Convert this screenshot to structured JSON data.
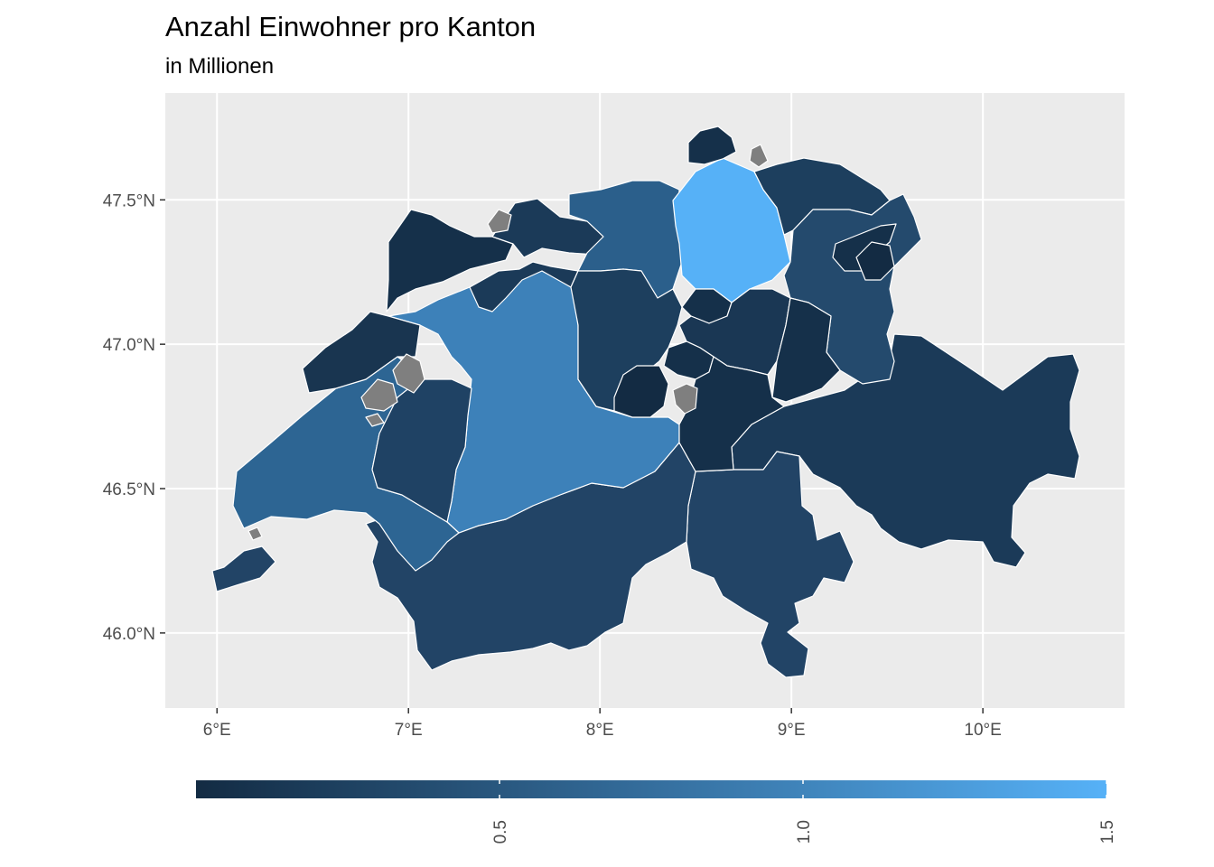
{
  "title": "Anzahl Einwohner pro Kanton",
  "subtitle": "in Millionen",
  "map": {
    "region": "Schweiz",
    "panel_background": "#ebebeb",
    "grid_color": "#ffffff",
    "border_color": "#ffffff",
    "na_color": "#7f7f7f",
    "x_axis": {
      "range": [
        5.73,
        10.74
      ],
      "ticks": [
        {
          "value": 6,
          "label": "6°E"
        },
        {
          "value": 7,
          "label": "7°E"
        },
        {
          "value": 8,
          "label": "8°E"
        },
        {
          "value": 9,
          "label": "9°E"
        },
        {
          "value": 10,
          "label": "10°E"
        }
      ]
    },
    "y_axis": {
      "range": [
        45.74,
        47.87
      ],
      "ticks": [
        {
          "value": 47.5,
          "label": "47.5°N"
        },
        {
          "value": 47.0,
          "label": "47.0°N"
        },
        {
          "value": 46.5,
          "label": "46.5°N"
        },
        {
          "value": 46.0,
          "label": "46.0°N"
        }
      ]
    }
  },
  "legend": {
    "position": "bottom",
    "low_color": "#132b43",
    "high_color": "#56b1f7",
    "range": [
      0.0,
      1.5
    ],
    "ticks": [
      {
        "value": 0.5,
        "label": "0.5"
      },
      {
        "value": 1.0,
        "label": "1.0"
      },
      {
        "value": 1.5,
        "label": "1.5"
      }
    ]
  }
}
